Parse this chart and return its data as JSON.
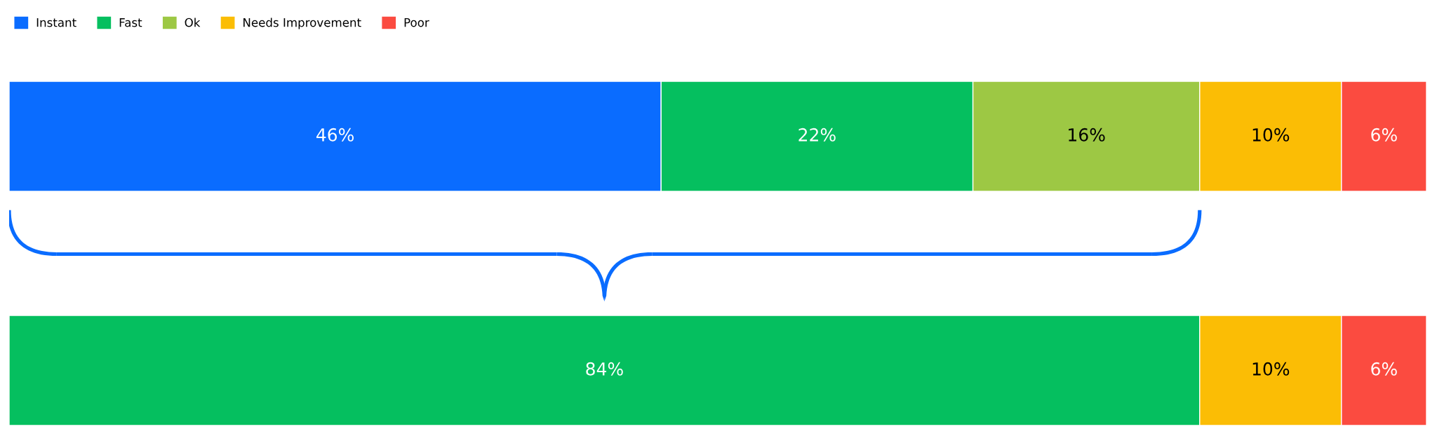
{
  "chart_data": {
    "type": "bar",
    "orientation": "horizontal",
    "stacked": true,
    "categories": [
      null,
      null
    ],
    "series": [
      {
        "name": "Instant",
        "color": "#0a6cff",
        "values": [
          46,
          null
        ],
        "value_labels": [
          "46%",
          null
        ]
      },
      {
        "name": "Fast",
        "color": "#05bf5f",
        "values": [
          22,
          84
        ],
        "value_labels": [
          "22%",
          "84%"
        ]
      },
      {
        "name": "Ok",
        "color": "#9dc844",
        "values": [
          16,
          null
        ],
        "value_labels": [
          "16%",
          null
        ]
      },
      {
        "name": "Needs Improvement",
        "color": "#fbbd05",
        "values": [
          10,
          10
        ],
        "value_labels": [
          "10%",
          "10%"
        ]
      },
      {
        "name": "Poor",
        "color": "#fb4b40",
        "values": [
          6,
          6
        ],
        "value_labels": [
          "6%",
          "6%"
        ]
      }
    ],
    "legend": "top left",
    "grid": false,
    "tick_labels": false
  }
}
